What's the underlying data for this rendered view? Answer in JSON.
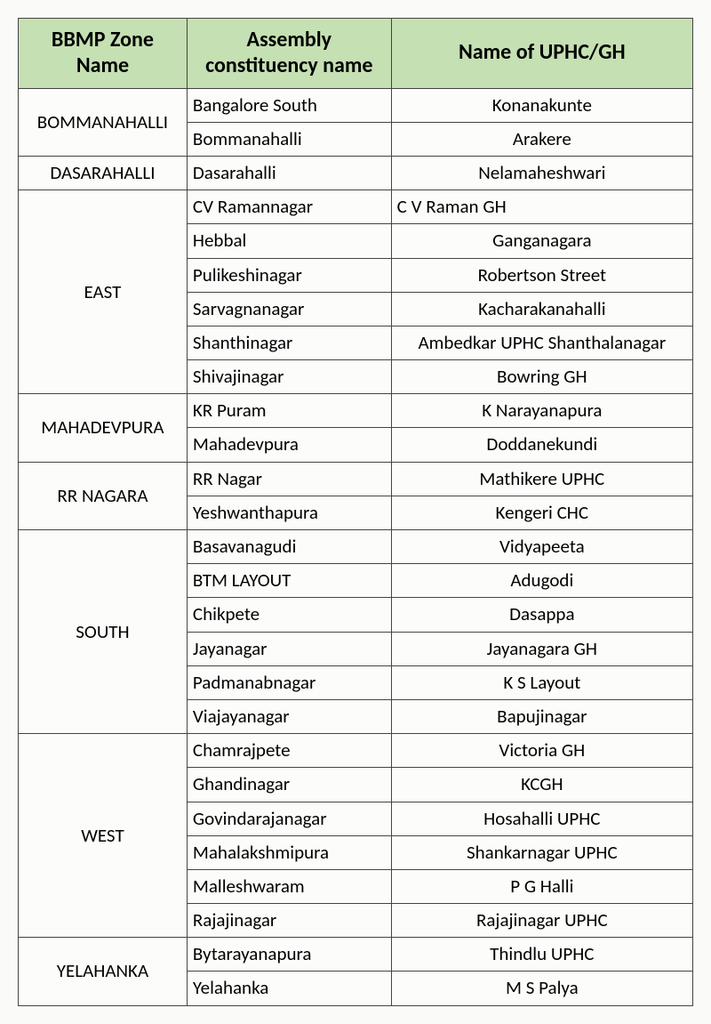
{
  "headers": {
    "zone": "BBMP Zone Name",
    "assembly": "Assembly constituency name",
    "uphc": "Name of  UPHC/GH"
  },
  "zones": [
    {
      "name": "BOMMANAHALLI",
      "rows": [
        {
          "assembly": "Bangalore South",
          "uphc": "Konanakunte",
          "align": "center"
        },
        {
          "assembly": "Bommanahalli",
          "uphc": "Arakere",
          "align": "center"
        }
      ]
    },
    {
      "name": "DASARAHALLI",
      "rows": [
        {
          "assembly": "Dasarahalli",
          "uphc": "Nelamaheshwari",
          "align": "center"
        }
      ]
    },
    {
      "name": "EAST",
      "rows": [
        {
          "assembly": "CV Ramannagar",
          "uphc": "C V Raman GH",
          "align": "left"
        },
        {
          "assembly": "Hebbal",
          "uphc": "Ganganagara",
          "align": "center"
        },
        {
          "assembly": "Pulikeshinagar",
          "uphc": "Robertson Street",
          "align": "center"
        },
        {
          "assembly": "Sarvagnanagar",
          "uphc": "Kacharakanahalli",
          "align": "center"
        },
        {
          "assembly": "Shanthinagar",
          "uphc": "Ambedkar UPHC Shanthalanagar",
          "align": "center"
        },
        {
          "assembly": "Shivajinagar",
          "uphc": "Bowring GH",
          "align": "center"
        }
      ]
    },
    {
      "name": "MAHADEVPURA",
      "rows": [
        {
          "assembly": "KR Puram",
          "uphc": "K Narayanapura",
          "align": "center"
        },
        {
          "assembly": "Mahadevpura",
          "uphc": "Doddanekundi",
          "align": "center"
        }
      ]
    },
    {
      "name": "RR NAGARA",
      "rows": [
        {
          "assembly": "RR Nagar",
          "uphc": "Mathikere UPHC",
          "align": "center"
        },
        {
          "assembly": "Yeshwanthapura",
          "uphc": "Kengeri CHC",
          "align": "center"
        }
      ]
    },
    {
      "name": "SOUTH",
      "rows": [
        {
          "assembly": "Basavanagudi",
          "uphc": "Vidyapeeta",
          "align": "center"
        },
        {
          "assembly": "BTM LAYOUT",
          "uphc": "Adugodi",
          "align": "center"
        },
        {
          "assembly": "Chikpete",
          "uphc": "Dasappa",
          "align": "center"
        },
        {
          "assembly": "Jayanagar",
          "uphc": "Jayanagara GH",
          "align": "center"
        },
        {
          "assembly": "Padmanabnagar",
          "uphc": "K S Layout",
          "align": "center"
        },
        {
          "assembly": "Viajayanagar",
          "uphc": "Bapujinagar",
          "align": "center"
        }
      ]
    },
    {
      "name": "WEST",
      "rows": [
        {
          "assembly": "Chamrajpete",
          "uphc": "Victoria GH",
          "align": "center"
        },
        {
          "assembly": "Ghandinagar",
          "uphc": "KCGH",
          "align": "center"
        },
        {
          "assembly": "Govindarajanagar",
          "uphc": "Hosahalli UPHC",
          "align": "center"
        },
        {
          "assembly": "Mahalakshmipura",
          "uphc": "Shankarnagar UPHC",
          "align": "center"
        },
        {
          "assembly": "Malleshwaram",
          "uphc": "P G Halli",
          "align": "center"
        },
        {
          "assembly": "Rajajinagar",
          "uphc": "Rajajinagar UPHC",
          "align": "center"
        }
      ]
    },
    {
      "name": "YELAHANKA",
      "rows": [
        {
          "assembly": "Bytarayanapura",
          "uphc": "Thindlu UPHC",
          "align": "center"
        },
        {
          "assembly": "Yelahanka",
          "uphc": "M S Palya",
          "align": "center"
        }
      ]
    }
  ],
  "style": {
    "header_bg": "#c5e0b3",
    "border_color": "#444444",
    "page_bg": "#fafaf8",
    "font_family": "Calibri",
    "header_fontsize": 24,
    "cell_fontsize": 21
  }
}
